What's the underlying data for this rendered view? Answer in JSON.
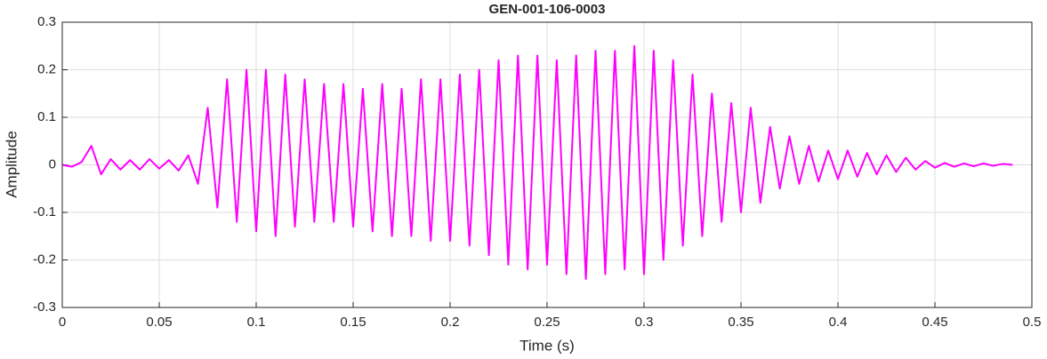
{
  "chart_data": {
    "type": "line",
    "title": "GEN-001-106-0003",
    "xlabel": "Time (s)",
    "ylabel": "Amplitude",
    "color": "#ff00ff",
    "grid": true,
    "xlim": [
      0,
      0.5
    ],
    "ylim": [
      -0.3,
      0.3
    ],
    "xticks": [
      0,
      0.05,
      0.1,
      0.15,
      0.2,
      0.25,
      0.3,
      0.35,
      0.4,
      0.45,
      0.5
    ],
    "yticks": [
      -0.3,
      -0.2,
      -0.1,
      0,
      0.1,
      0.2,
      0.3
    ],
    "x": [
      0,
      0.005,
      0.01,
      0.015,
      0.02,
      0.025,
      0.03,
      0.035,
      0.04,
      0.045,
      0.05,
      0.055,
      0.06,
      0.065,
      0.07,
      0.075,
      0.08,
      0.085,
      0.09,
      0.095,
      0.1,
      0.105,
      0.11,
      0.115,
      0.12,
      0.125,
      0.13,
      0.135,
      0.14,
      0.145,
      0.15,
      0.155,
      0.16,
      0.165,
      0.17,
      0.175,
      0.18,
      0.185,
      0.19,
      0.195,
      0.2,
      0.205,
      0.21,
      0.215,
      0.22,
      0.225,
      0.23,
      0.235,
      0.24,
      0.245,
      0.25,
      0.255,
      0.26,
      0.265,
      0.27,
      0.275,
      0.28,
      0.285,
      0.29,
      0.295,
      0.3,
      0.305,
      0.31,
      0.315,
      0.32,
      0.325,
      0.33,
      0.335,
      0.34,
      0.345,
      0.35,
      0.355,
      0.36,
      0.365,
      0.37,
      0.375,
      0.38,
      0.385,
      0.39,
      0.395,
      0.4,
      0.405,
      0.41,
      0.415,
      0.42,
      0.425,
      0.43,
      0.435,
      0.44,
      0.445,
      0.45,
      0.455,
      0.46,
      0.465,
      0.47,
      0.475,
      0.48,
      0.485,
      0.49
    ],
    "values": [
      0,
      -0.004,
      0.006,
      0.04,
      -0.02,
      0.012,
      -0.01,
      0.01,
      -0.01,
      0.012,
      -0.008,
      0.01,
      -0.012,
      0.02,
      -0.04,
      0.12,
      -0.09,
      0.18,
      -0.12,
      0.2,
      -0.14,
      0.2,
      -0.15,
      0.19,
      -0.13,
      0.18,
      -0.12,
      0.17,
      -0.12,
      0.17,
      -0.13,
      0.16,
      -0.14,
      0.17,
      -0.15,
      0.16,
      -0.15,
      0.18,
      -0.16,
      0.18,
      -0.16,
      0.19,
      -0.17,
      0.2,
      -0.19,
      0.22,
      -0.21,
      0.23,
      -0.22,
      0.23,
      -0.21,
      0.22,
      -0.23,
      0.23,
      -0.24,
      0.24,
      -0.23,
      0.24,
      -0.22,
      0.25,
      -0.23,
      0.24,
      -0.2,
      0.22,
      -0.17,
      0.19,
      -0.15,
      0.15,
      -0.12,
      0.13,
      -0.1,
      0.12,
      -0.08,
      0.08,
      -0.05,
      0.06,
      -0.04,
      0.04,
      -0.035,
      0.03,
      -0.03,
      0.03,
      -0.025,
      0.025,
      -0.02,
      0.02,
      -0.015,
      0.015,
      -0.01,
      0.008,
      -0.006,
      0.004,
      -0.004,
      0.003,
      -0.003,
      0.003,
      -0.002,
      0.002,
      0
    ]
  }
}
